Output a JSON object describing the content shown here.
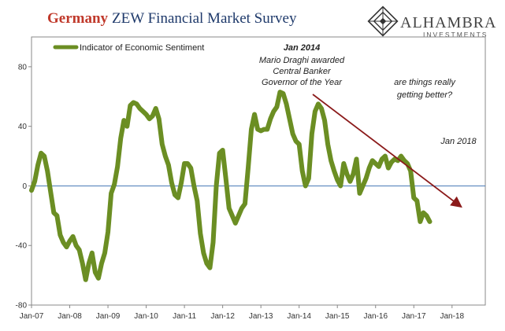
{
  "header": {
    "title_highlight": "Germany",
    "title_rest": "ZEW Financial Market Survey"
  },
  "logo": {
    "name": "ALHAMBRA",
    "subtitle": "INVESTMENTS"
  },
  "colors": {
    "series": "#6b8e23",
    "zero_line": "#4a7bb7",
    "arrow": "#8b1a1a",
    "title_highlight": "#c0392b",
    "title_rest": "#1f3a6b"
  },
  "chart_data": {
    "type": "line",
    "title": "Germany ZEW Financial Market Survey",
    "xlabel": "",
    "ylabel": "",
    "ylim": [
      -80,
      100
    ],
    "yticks": [
      80,
      40,
      0,
      -40,
      -80
    ],
    "ytick_labels": [
      "80",
      "40",
      "0",
      "-40",
      "-80"
    ],
    "xlim": [
      2007.0,
      2018.87
    ],
    "xtick_labels": [
      "Jan-07",
      "Jan-08",
      "Jan-09",
      "Jan-10",
      "Jan-11",
      "Jan-12",
      "Jan-13",
      "Jan-14",
      "Jan-15",
      "Jan-16",
      "Jan-17",
      "Jan-18"
    ],
    "xticks": [
      2007,
      2008,
      2009,
      2010,
      2011,
      2012,
      2013,
      2014,
      2015,
      2016,
      2017,
      2018
    ],
    "legend": {
      "position": "top-left"
    },
    "series": [
      {
        "name": "Indicator of Economic Sentiment",
        "start": "Jan-07",
        "frequency": "monthly",
        "values": [
          -3,
          3,
          14,
          22,
          20,
          10,
          -4,
          -18,
          -20,
          -33,
          -38,
          -41,
          -37,
          -34,
          -40,
          -43,
          -52,
          -63,
          -52,
          -45,
          -58,
          -62,
          -52,
          -45,
          -31,
          -5,
          1,
          13,
          32,
          44,
          40,
          54,
          56,
          55,
          52,
          50,
          48,
          45,
          47,
          52,
          45,
          28,
          20,
          14,
          2,
          -6,
          -8,
          2,
          15,
          15,
          12,
          0,
          -10,
          -32,
          -45,
          -52,
          -55,
          -38,
          0,
          22,
          24,
          5,
          -15,
          -20,
          -25,
          -20,
          -15,
          -12,
          12,
          38,
          48,
          38,
          37,
          38,
          38,
          45,
          50,
          53,
          63,
          62,
          55,
          45,
          35,
          30,
          28,
          10,
          0,
          5,
          35,
          50,
          55,
          52,
          44,
          28,
          17,
          10,
          4,
          0,
          15,
          8,
          3,
          8,
          18,
          -5,
          0,
          5,
          12,
          17,
          15,
          13,
          18,
          20,
          12,
          16,
          18,
          17,
          20,
          17,
          15,
          10,
          -8,
          -10,
          -24,
          -18,
          -20,
          -24
        ]
      }
    ],
    "annotations": [
      {
        "label": "Jan 2014",
        "lines": [
          "Mario Draghi awarded",
          "Central Banker",
          "Governor of the Year"
        ]
      },
      {
        "lines": [
          "are things really",
          "getting better?"
        ]
      },
      {
        "label": "Jan 2018"
      }
    ]
  }
}
